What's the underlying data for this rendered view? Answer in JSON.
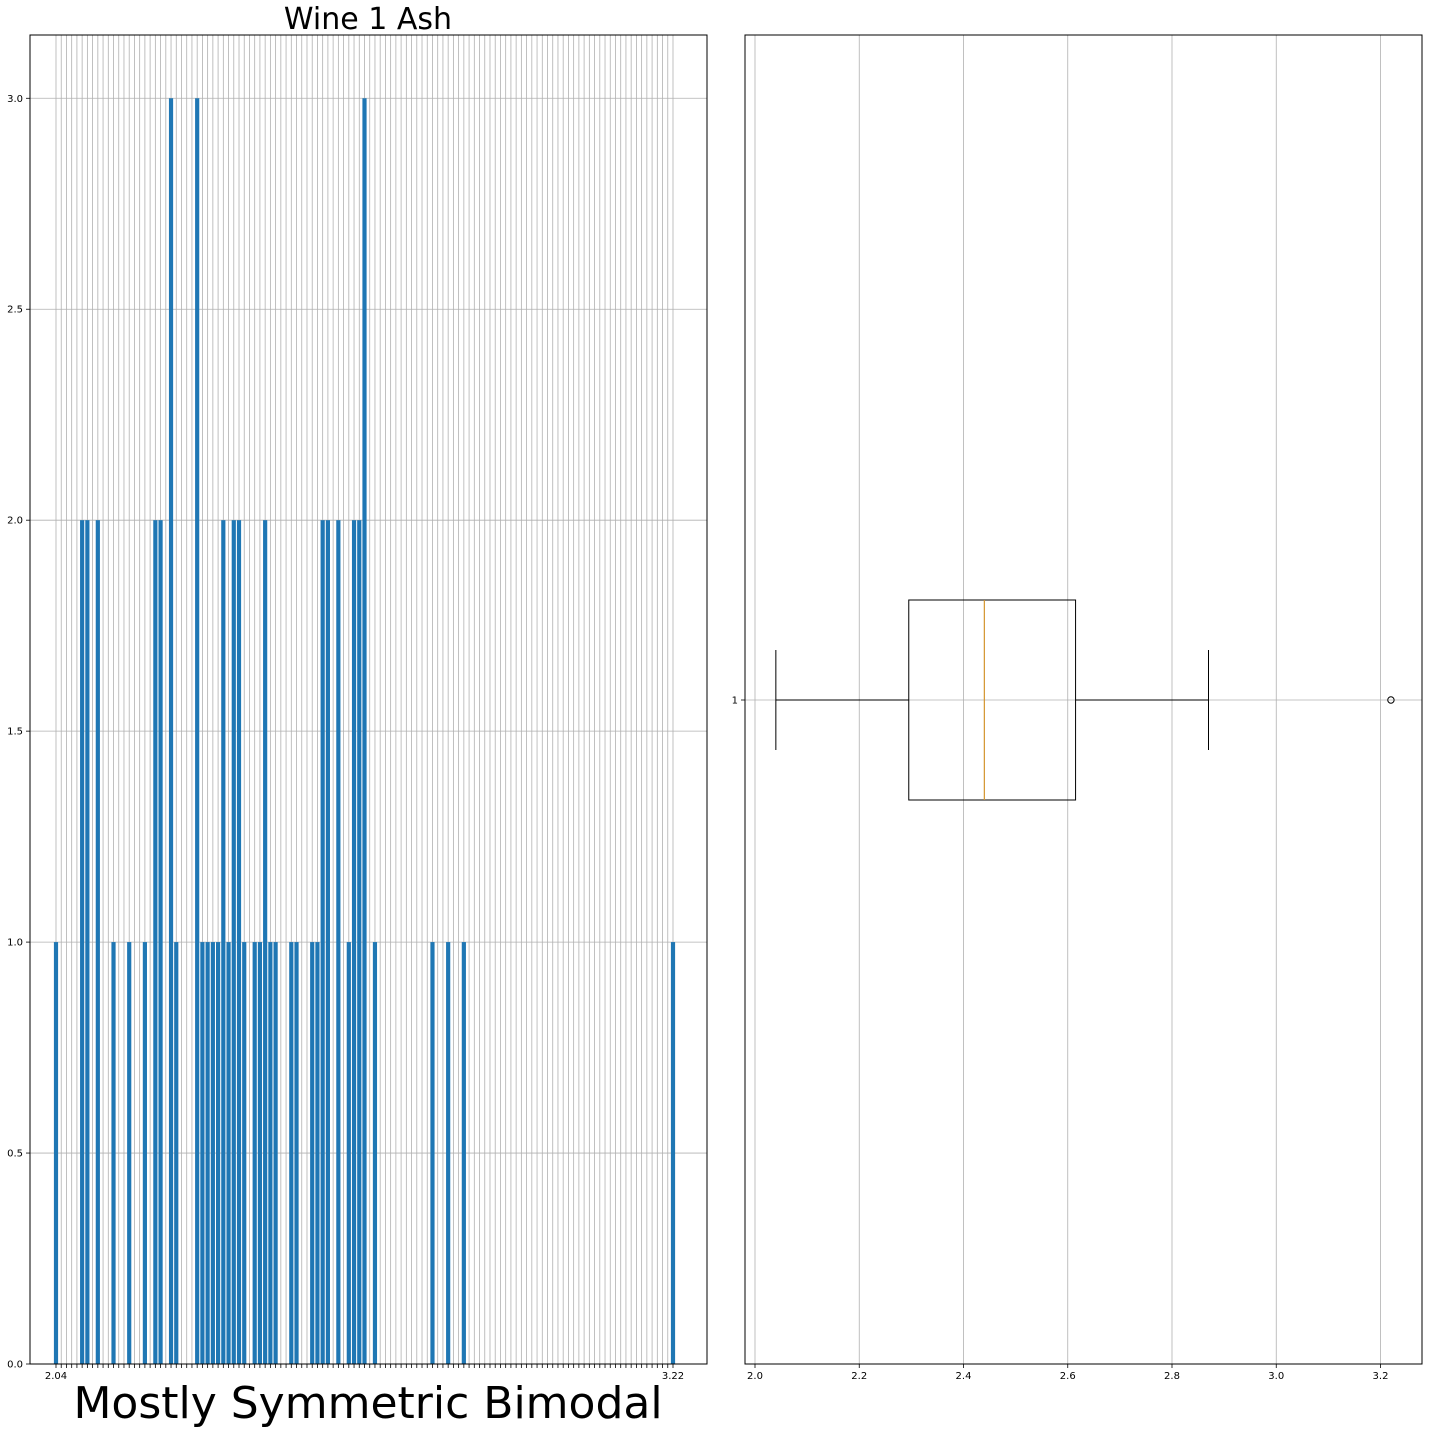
{
  "chart_data": [
    {
      "type": "bar",
      "title": "Wine 1 Ash",
      "xlabel": "Mostly Symmetric Bimodal",
      "ylabel": "",
      "ylim": [
        0,
        3.15
      ],
      "yticks": [
        0.0,
        0.5,
        1.0,
        1.5,
        2.0,
        2.5,
        3.0
      ],
      "ytick_labels": [
        "0.0",
        "0.5",
        "1.0",
        "1.5",
        "2.0",
        "2.5",
        "3.0"
      ],
      "grid": true,
      "bar_color": "#1f77b4",
      "first_category": "2.04",
      "last_category": "3.22",
      "categories": [
        "2.04",
        "2.05",
        "2.06",
        "2.07",
        "2.08",
        "2.09",
        "2.10",
        "2.11",
        "2.12",
        "2.13",
        "2.14",
        "2.15",
        "2.16",
        "2.17",
        "2.18",
        "2.19",
        "2.20",
        "2.21",
        "2.22",
        "2.23",
        "2.24",
        "2.25",
        "2.26",
        "2.27",
        "2.28",
        "2.29",
        "2.30",
        "2.31",
        "2.32",
        "2.33",
        "2.34",
        "2.35",
        "2.36",
        "2.37",
        "2.38",
        "2.39",
        "2.40",
        "2.41",
        "2.42",
        "2.43",
        "2.44",
        "2.45",
        "2.46",
        "2.47",
        "2.48",
        "2.49",
        "2.50",
        "2.51",
        "2.52",
        "2.53",
        "2.54",
        "2.55",
        "2.56",
        "2.57",
        "2.58",
        "2.59",
        "2.60",
        "2.61",
        "2.62",
        "2.63",
        "2.64",
        "2.65",
        "2.66",
        "2.67",
        "2.68",
        "2.69",
        "2.70",
        "2.71",
        "2.72",
        "2.73",
        "2.74",
        "2.75",
        "2.76",
        "2.77",
        "2.78",
        "2.79",
        "2.80",
        "2.81",
        "2.82",
        "2.83",
        "2.84",
        "2.85",
        "2.86",
        "2.87",
        "2.88",
        "2.89",
        "2.90",
        "2.91",
        "2.92",
        "2.93",
        "2.94",
        "2.95",
        "2.96",
        "2.97",
        "2.98",
        "2.99",
        "3.00",
        "3.01",
        "3.02",
        "3.03",
        "3.04",
        "3.05",
        "3.06",
        "3.07",
        "3.08",
        "3.09",
        "3.10",
        "3.11",
        "3.12",
        "3.13",
        "3.14",
        "3.15",
        "3.16",
        "3.17",
        "3.18",
        "3.19",
        "3.20",
        "3.21",
        "3.22"
      ],
      "values": [
        1,
        0,
        0,
        0,
        0,
        2,
        2,
        0,
        2,
        0,
        0,
        1,
        0,
        0,
        1,
        0,
        0,
        1,
        0,
        2,
        2,
        0,
        3,
        1,
        0,
        0,
        0,
        3,
        1,
        1,
        1,
        1,
        2,
        1,
        2,
        2,
        1,
        0,
        1,
        1,
        2,
        1,
        1,
        0,
        0,
        1,
        1,
        0,
        0,
        1,
        1,
        2,
        2,
        0,
        2,
        0,
        1,
        2,
        2,
        3,
        0,
        1,
        0,
        0,
        0,
        0,
        0,
        0,
        0,
        0,
        0,
        0,
        1,
        0,
        0,
        1,
        0,
        0,
        1,
        0,
        0,
        0,
        0,
        0,
        0,
        0,
        0,
        0,
        0,
        0,
        0,
        0,
        0,
        0,
        0,
        0,
        0,
        0,
        0,
        0,
        0,
        0,
        0,
        0,
        0,
        0,
        0,
        0,
        0,
        0,
        0,
        0,
        0,
        0,
        0,
        0,
        0,
        0,
        1
      ]
    },
    {
      "type": "boxplot",
      "orientation": "horizontal",
      "title": "",
      "xlim": [
        1.99,
        3.28
      ],
      "xticks": [
        2.0,
        2.2,
        2.4,
        2.6,
        2.8,
        3.0,
        3.2
      ],
      "xtick_labels": [
        "2.0",
        "2.2",
        "2.4",
        "2.6",
        "2.8",
        "3.0",
        "3.2"
      ],
      "ytick_labels": [
        "1"
      ],
      "grid": true,
      "whisker_low": 2.04,
      "q1": 2.295,
      "median": 2.44,
      "q3": 2.615,
      "whisker_high": 2.87,
      "outliers": [
        3.22
      ],
      "median_color": "#d4952e"
    }
  ]
}
